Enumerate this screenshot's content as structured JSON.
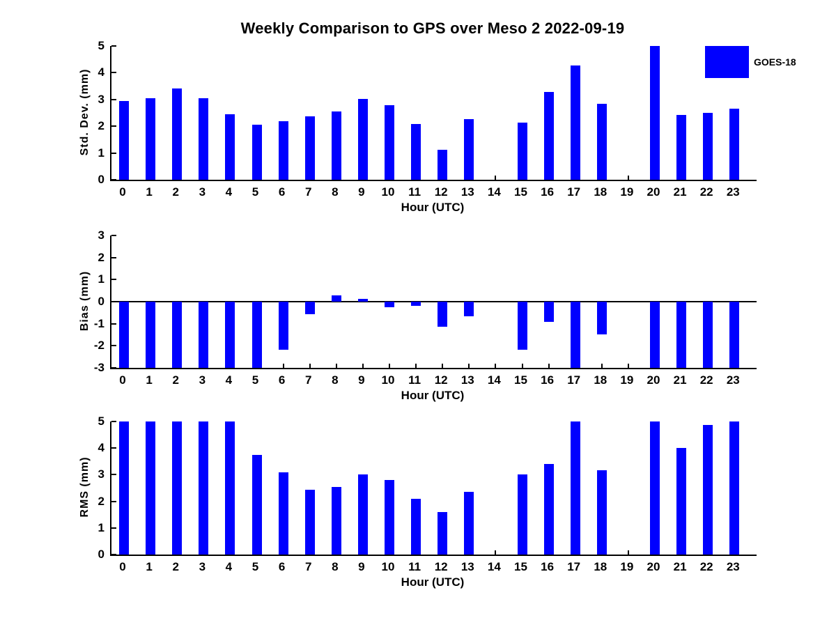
{
  "title": "Weekly Comparison to GPS over Meso 2 2022-09-19",
  "legend": {
    "label": "GOES-18",
    "color": "#0000ff"
  },
  "chart_data": {
    "type": "bar",
    "x": [
      0,
      1,
      2,
      3,
      4,
      5,
      6,
      7,
      8,
      9,
      10,
      11,
      12,
      13,
      14,
      15,
      16,
      17,
      18,
      19,
      20,
      21,
      22,
      23
    ],
    "xlabel": "Hour (UTC)",
    "bar_color": "#0000ff",
    "axis_color": "#000000",
    "grid": false,
    "legend_position": "top-right",
    "series_name": "GOES-18",
    "panels": [
      {
        "name": "std_dev",
        "ylabel": "Std. Dev. (mm)",
        "ylim": [
          0,
          5
        ],
        "yticks": [
          0,
          1,
          2,
          3,
          4,
          5
        ],
        "values": [
          2.93,
          3.05,
          3.4,
          3.04,
          2.46,
          2.05,
          2.2,
          2.36,
          2.56,
          3.02,
          2.78,
          2.08,
          1.13,
          2.26,
          null,
          2.13,
          3.27,
          4.27,
          2.84,
          null,
          5.0,
          2.41,
          2.49,
          2.65
        ]
      },
      {
        "name": "bias",
        "ylabel": "Bias (mm)",
        "ylim": [
          -3,
          3
        ],
        "yticks": [
          -3,
          -2,
          -1,
          0,
          1,
          2,
          3
        ],
        "zero_line": true,
        "values": [
          -3,
          -3,
          -3,
          -3,
          -3,
          -3,
          -2.19,
          -0.58,
          0.28,
          0.13,
          -0.25,
          -0.18,
          -1.14,
          -0.66,
          null,
          -2.18,
          -0.91,
          -3,
          -1.49,
          null,
          -3,
          -3,
          -3,
          -3
        ]
      },
      {
        "name": "rms",
        "ylabel": "RMS (mm)",
        "ylim": [
          0,
          5
        ],
        "yticks": [
          0,
          1,
          2,
          3,
          4,
          5
        ],
        "values": [
          5,
          5,
          5,
          5,
          5,
          3.75,
          3.08,
          2.43,
          2.55,
          3.0,
          2.79,
          2.09,
          1.6,
          2.35,
          null,
          3.02,
          3.4,
          5,
          3.17,
          null,
          5,
          4.0,
          4.87,
          5
        ]
      }
    ]
  }
}
